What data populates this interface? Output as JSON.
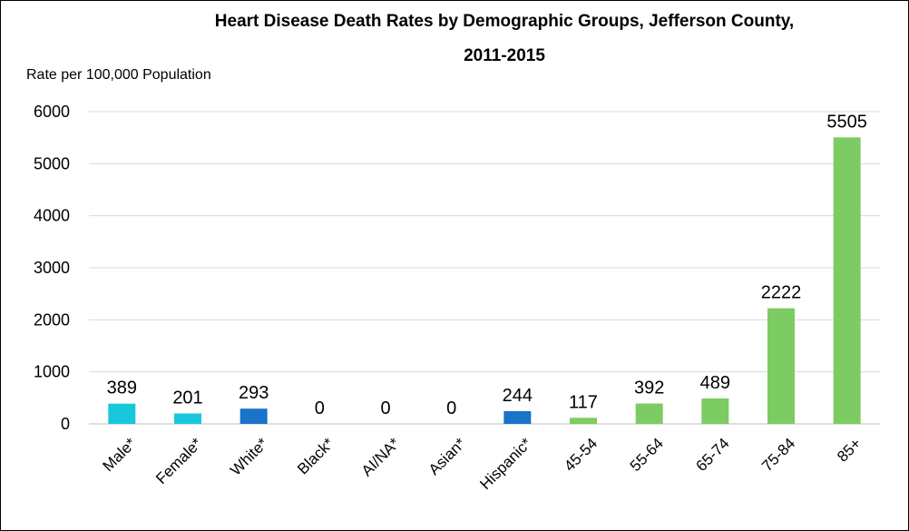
{
  "chart_data": {
    "type": "bar",
    "title_lines": [
      "Heart Disease Death Rates by Demographic Groups, Jefferson County,",
      "2011-2015"
    ],
    "ylabel": "Rate per 100,000 Population",
    "xlabel": "",
    "ylim": [
      0,
      6000
    ],
    "yticks": [
      0,
      1000,
      2000,
      3000,
      4000,
      5000,
      6000
    ],
    "grid": true,
    "legend": "none",
    "categories": [
      "Male*",
      "Female*",
      "White*",
      "Black*",
      "AI/NA*",
      "Asian*",
      "Hispanic*",
      "45-54",
      "55-64",
      "65-74",
      "75-84",
      "85+"
    ],
    "values": [
      389,
      201,
      293,
      0,
      0,
      0,
      244,
      117,
      392,
      489,
      2222,
      5505
    ],
    "data_labels": [
      "389",
      "201",
      "293",
      "0",
      "0",
      "0",
      "244",
      "117",
      "392",
      "489",
      "2222",
      "5505"
    ],
    "bar_colors": [
      "#17c8dc",
      "#17c8dc",
      "#1a72c9",
      "#1a72c9",
      "#1a72c9",
      "#1a72c9",
      "#1a72c9",
      "#7ccc63",
      "#7ccc63",
      "#7ccc63",
      "#7ccc63",
      "#7ccc63"
    ]
  }
}
